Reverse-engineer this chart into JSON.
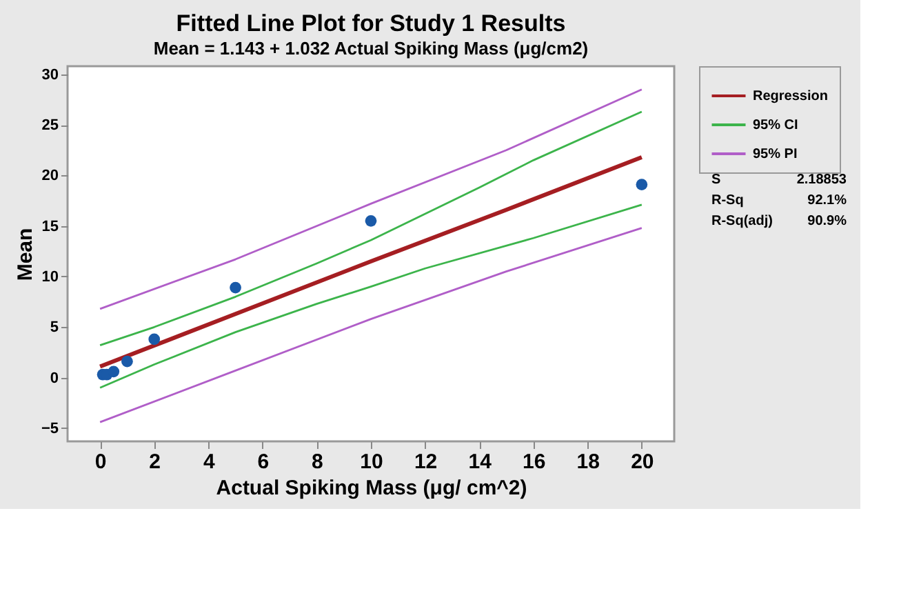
{
  "chart_data": {
    "type": "line",
    "title": "Fitted Line Plot for Study 1 Results",
    "subtitle": "Mean = 1.143 + 1.032 Actual Spiking Mass (μg/cm2)",
    "xlabel": "Actual Spiking Mass (μg/ cm^2)",
    "ylabel": "Mean",
    "series": [
      {
        "type": "scatter",
        "marker": "circle",
        "color": "#1a5aa8",
        "x": [
          0.1,
          0.25,
          0.5,
          1,
          2,
          5,
          10,
          20
        ],
        "values": [
          0.3,
          0.3,
          0.6,
          1.6,
          3.8,
          8.9,
          15.5,
          19.1
        ]
      },
      {
        "name": "Regression",
        "color": "#a51e22",
        "x": [
          0,
          5,
          10,
          15,
          20
        ],
        "values": [
          1.1,
          6.3,
          11.5,
          16.6,
          21.8
        ]
      },
      {
        "name": "95% CI",
        "color": "#3cb44b",
        "x": [
          0,
          2,
          5,
          8,
          10,
          14,
          16,
          20
        ],
        "values": [
          3.2,
          5.0,
          8.0,
          11.3,
          13.6,
          18.8,
          21.5,
          26.3
        ]
      },
      {
        "color": "#3cb44b",
        "x": [
          0,
          2,
          5,
          8,
          10,
          12,
          16,
          20
        ],
        "values": [
          -1.0,
          1.3,
          4.5,
          7.3,
          9.0,
          10.8,
          13.8,
          17.1
        ]
      },
      {
        "name": "95% PI",
        "color": "#b05ec8",
        "x": [
          0,
          5,
          10,
          15,
          20
        ],
        "values": [
          6.8,
          11.7,
          17.2,
          22.5,
          28.5
        ]
      },
      {
        "color": "#b05ec8",
        "x": [
          0,
          5,
          10,
          15,
          20
        ],
        "values": [
          -4.4,
          0.7,
          5.8,
          10.5,
          14.8
        ]
      }
    ],
    "annotations": [
      "S",
      "2.18853",
      "R-Sq",
      "92.1%",
      "R-Sq(adj)",
      "90.9%"
    ],
    "xlim": [
      -1.2,
      21.2
    ],
    "xticks": [
      0,
      2,
      4,
      6,
      8,
      10,
      12,
      14,
      16,
      18,
      20
    ],
    "ylim": [
      -6.3,
      30.8
    ],
    "yticks": [
      -5,
      0,
      5,
      10,
      15,
      20,
      25,
      30
    ],
    "grid": false,
    "legend": "top right",
    "line_style": "solid"
  }
}
